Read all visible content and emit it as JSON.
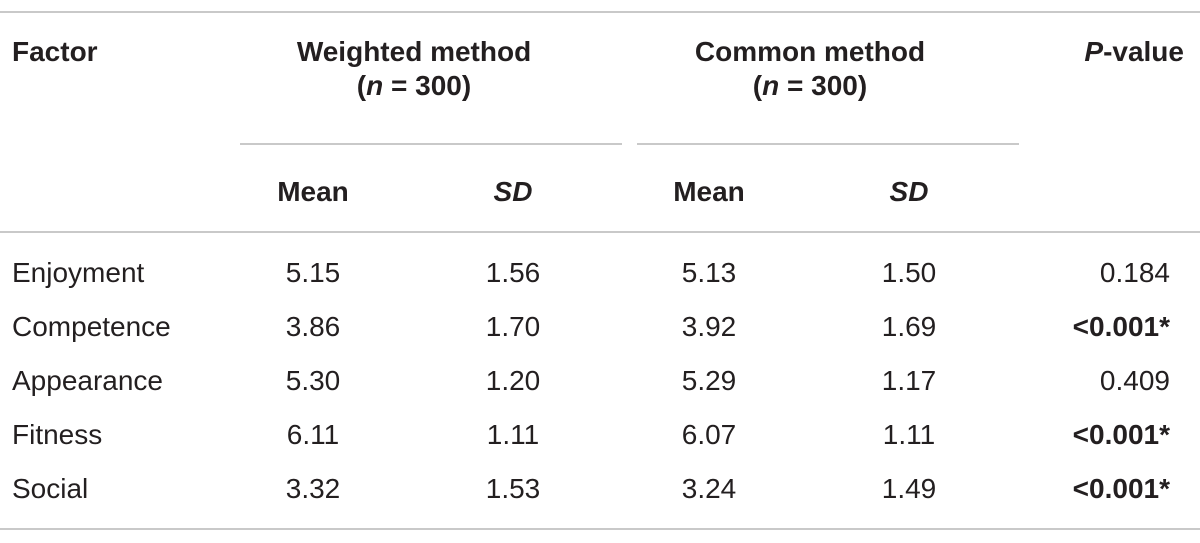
{
  "header": {
    "factor": "Factor",
    "weighted_line1": "Weighted method",
    "weighted_n": "n",
    "weighted_eq": " = 300)",
    "common_line1": "Common method",
    "common_n": "n",
    "common_eq": " = 300)",
    "p_italic": "P",
    "p_rest": "-value",
    "mean": "Mean",
    "sd": "SD"
  },
  "rows": [
    {
      "factor": "Enjoyment",
      "w_mean": "5.15",
      "w_sd": "1.56",
      "c_mean": "5.13",
      "c_sd": "1.50",
      "p": "0.184",
      "p_bold": false
    },
    {
      "factor": "Competence",
      "w_mean": "3.86",
      "w_sd": "1.70",
      "c_mean": "3.92",
      "c_sd": "1.69",
      "p": "<0.001*",
      "p_bold": true
    },
    {
      "factor": "Appearance",
      "w_mean": "5.30",
      "w_sd": "1.20",
      "c_mean": "5.29",
      "c_sd": "1.17",
      "p": "0.409",
      "p_bold": false
    },
    {
      "factor": "Fitness",
      "w_mean": "6.11",
      "w_sd": "1.11",
      "c_mean": "6.07",
      "c_sd": "1.11",
      "p": "<0.001*",
      "p_bold": true
    },
    {
      "factor": "Social",
      "w_mean": "3.32",
      "w_sd": "1.53",
      "c_mean": "3.24",
      "c_sd": "1.49",
      "p": "<0.001*",
      "p_bold": true
    }
  ]
}
